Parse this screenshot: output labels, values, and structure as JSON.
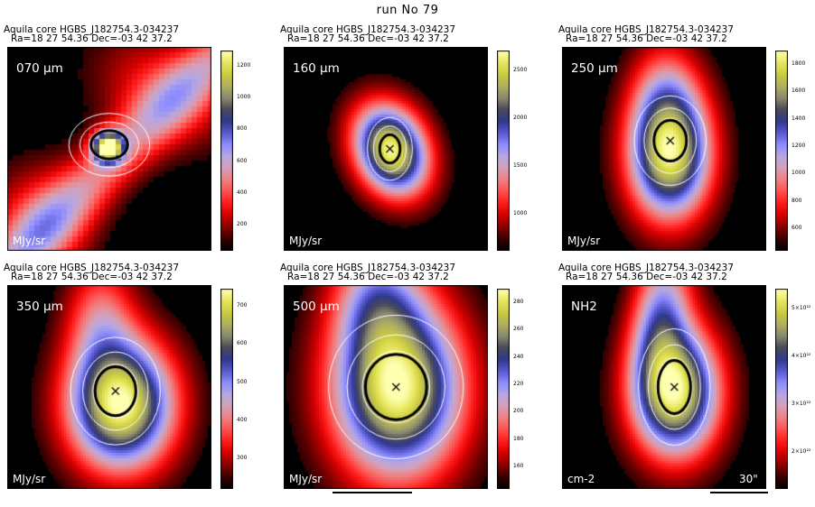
{
  "run_title": "run No  79",
  "header_line1": "Aquila core HGBS_J182754.3-034237",
  "header_line2": "Ra=18 27 54.36 Dec=-03 42 37.2",
  "panels": [
    {
      "id": "p070",
      "label": "070 μm",
      "unit": "MJy/sr",
      "ticks": [
        "1200",
        "1000",
        "800",
        "600",
        "400",
        "200"
      ],
      "peak": 1.0,
      "colors": {
        "background": "#000000"
      }
    },
    {
      "id": "p160",
      "label": "160 μm",
      "unit": "MJy/sr",
      "ticks": [
        "2500",
        "2000",
        "1500",
        "1000"
      ]
    },
    {
      "id": "p250",
      "label": "250 μm",
      "unit": "MJy/sr",
      "ticks": [
        "1800",
        "1600",
        "1400",
        "1200",
        "1000",
        "800",
        "600"
      ]
    },
    {
      "id": "p350",
      "label": "350 μm",
      "unit": "MJy/sr",
      "ticks": [
        "700",
        "600",
        "500",
        "400",
        "300"
      ]
    },
    {
      "id": "p500",
      "label": "500 μm",
      "unit": "MJy/sr",
      "ticks": [
        "280",
        "260",
        "240",
        "220",
        "200",
        "180",
        "160"
      ]
    },
    {
      "id": "pnh2",
      "label": "NH2",
      "unit": "cm-2",
      "scalebar": "30\"",
      "ticks": [
        "5×10²²",
        "4×10²²",
        "3×10²²",
        "2×10²²"
      ]
    }
  ],
  "colormap": [
    "#000000",
    "#3a0000",
    "#8a0000",
    "#d40000",
    "#ff1a1a",
    "#ff5050",
    "#f08080",
    "#d6a0b8",
    "#b8a8e0",
    "#8c8cff",
    "#5a5ad0",
    "#2f3a8c",
    "#4a4a5a",
    "#8a8a70",
    "#b0b060",
    "#cccc40",
    "#e8e860",
    "#ffffb0"
  ]
}
